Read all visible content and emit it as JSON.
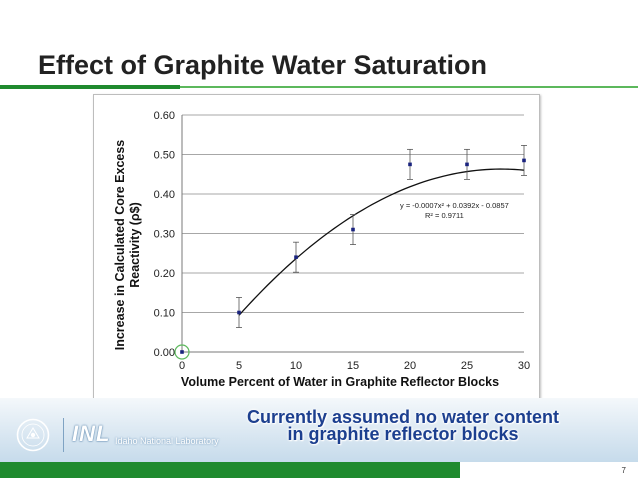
{
  "slide": {
    "title": "Effect of Graphite Water Saturation",
    "note_line1": "Currently assumed no water content",
    "note_line2": "in graphite reflector blocks",
    "logo_text": "INL",
    "logo_subtext": "Idaho National Laboratory",
    "page_number": "7"
  },
  "colors": {
    "accent_green": "#1f8a2e",
    "note_blue": "#1c3f8f",
    "data_point": "#1a237e",
    "highlight_circle": "#5cb85c"
  },
  "chart_data": {
    "type": "scatter",
    "title": "",
    "xlabel": "Volume Percent of Water in Graphite Reflector Blocks",
    "ylabel_line1": "Increase in Calculated Core Excess",
    "ylabel_line2": "Reactivity (ρ$)",
    "xlim": [
      0,
      30
    ],
    "ylim": [
      0,
      0.6
    ],
    "x_ticks": [
      "0",
      "5",
      "10",
      "15",
      "20",
      "25",
      "30"
    ],
    "y_ticks": [
      "0.00",
      "0.10",
      "0.20",
      "0.30",
      "0.40",
      "0.50",
      "0.60"
    ],
    "grid": true,
    "series": [
      {
        "points": [
          {
            "x": 0,
            "y": 0.0,
            "err": 0.0
          },
          {
            "x": 5,
            "y": 0.1,
            "err": 0.038
          },
          {
            "x": 10,
            "y": 0.24,
            "err": 0.038
          },
          {
            "x": 15,
            "y": 0.31,
            "err": 0.038
          },
          {
            "x": 20,
            "y": 0.475,
            "err": 0.038
          },
          {
            "x": 25,
            "y": 0.475,
            "err": 0.038
          },
          {
            "x": 30,
            "y": 0.485,
            "err": 0.038
          }
        ]
      }
    ],
    "trendline": {
      "type": "polynomial",
      "coefficients": {
        "a": -0.0007,
        "b": 0.0392,
        "c": -0.0857
      },
      "x_range": [
        5,
        30
      ],
      "equation_label": "y = -0.0007x² + 0.0392x - 0.0857",
      "r2_label": "R² = 0.9711"
    },
    "highlight": {
      "x": 0,
      "y": 0.0
    }
  }
}
